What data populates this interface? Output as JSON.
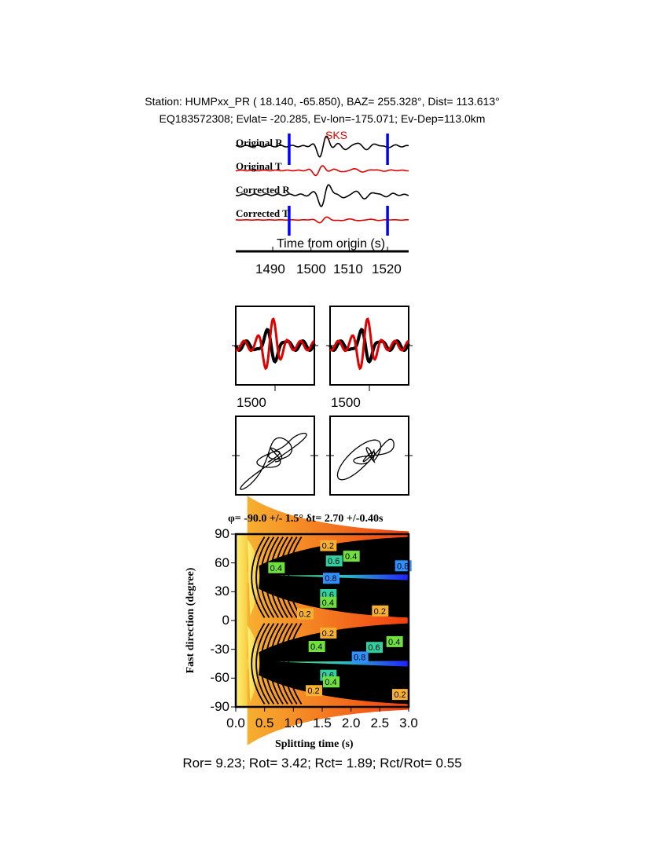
{
  "header": {
    "line1": "Station: HUMPxx_PR (  18.140,  -65.850), BAZ=  255.328°, Dist=  113.613°",
    "line2": "EQ183572308; Evlat= -20.285, Ev-lon=-175.071; Ev-Dep=113.0km"
  },
  "traces": {
    "phase_label": "SKS",
    "labels": [
      "Original R",
      "Original T",
      "Corrected R",
      "Corrected T"
    ],
    "xlabel": "Time from origin (s)",
    "xticks": [
      "1490",
      "1500",
      "1510",
      "1520"
    ],
    "window_marks_s": [
      1494.3,
      1520
    ],
    "colors": {
      "radial": "#000000",
      "transverse": "#e00000",
      "window": "#0000ff"
    }
  },
  "waveform_panels": {
    "tick_labels": [
      "1500",
      "1500"
    ]
  },
  "footer": {
    "ratios": "Ror= 9.23; Rot= 3.42; Rct= 1.89; Rct/Rot= 0.55"
  },
  "chart_data": {
    "type": "heatmap",
    "title": "φ= -90.0 +/- 1.5° δt= 2.70 +/-0.40s",
    "xlabel": "Splitting time (s)",
    "ylabel": "Fast direction (degree)",
    "xlim": [
      0.0,
      3.0
    ],
    "ylim": [
      -90,
      90
    ],
    "xticks": [
      "0.0",
      "0.5",
      "1.0",
      "1.5",
      "2.0",
      "2.5",
      "3.0"
    ],
    "yticks": [
      "90",
      "60",
      "30",
      "0",
      "-30",
      "-60",
      "-90"
    ],
    "contour_labels": [
      {
        "x": 1.6,
        "y": 78,
        "label": "0.2"
      },
      {
        "x": 1.7,
        "y": 62,
        "label": "0.6"
      },
      {
        "x": 2.0,
        "y": 67,
        "label": "0.4"
      },
      {
        "x": 2.9,
        "y": 57,
        "label": "0.8"
      },
      {
        "x": 0.7,
        "y": 55,
        "label": "0.4"
      },
      {
        "x": 1.65,
        "y": 44,
        "label": "0.8"
      },
      {
        "x": 1.6,
        "y": 27,
        "label": "0.6"
      },
      {
        "x": 1.6,
        "y": 19,
        "label": "0.4"
      },
      {
        "x": 1.2,
        "y": 7,
        "label": "0.2"
      },
      {
        "x": 2.5,
        "y": 10,
        "label": "0.2"
      },
      {
        "x": 1.6,
        "y": -13,
        "label": "0.2"
      },
      {
        "x": 1.4,
        "y": -27,
        "label": "0.4"
      },
      {
        "x": 2.4,
        "y": -28,
        "label": "0.6"
      },
      {
        "x": 2.75,
        "y": -22,
        "label": "0.4"
      },
      {
        "x": 2.15,
        "y": -38,
        "label": "0.8"
      },
      {
        "x": 1.6,
        "y": -57,
        "label": "0.6"
      },
      {
        "x": 1.65,
        "y": -64,
        "label": "0.4"
      },
      {
        "x": 1.35,
        "y": -73,
        "label": "0.2"
      },
      {
        "x": 2.85,
        "y": -77,
        "label": "0.2"
      }
    ],
    "colormap": "yellow-orange-red-green-blue",
    "grid": false
  }
}
